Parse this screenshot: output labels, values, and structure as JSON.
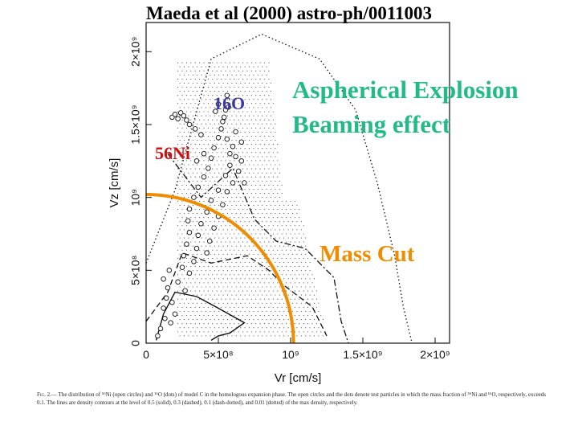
{
  "slide": {
    "title": "Maeda et al (2000) astro-ph/0011003",
    "annotations": {
      "o16_label": "16O",
      "ni56_label": "56Ni",
      "heading_line1": "Aspherical Explosion",
      "heading_line2": "Beaming effect",
      "mass_cut_label": "Mass Cut"
    },
    "caption": {
      "lead": "Fig. 2.",
      "text": "— The distribution of ⁵⁶Ni (open circles) and ¹⁶O (dots) of model C in the homologous expansion phase. The open circles and the dots denote test particles in which the mass fraction of ⁵⁶Ni and ¹⁶O, respectively, exceeds 0.1. The lines are density contours at the level of 0.5 (solid), 0.3 (dashed), 0.1 (dash-dotted), and 0.01 (dotted) of the max density, respectively."
    },
    "colors": {
      "o16": "#3a3aa0",
      "ni56": "#cc1111",
      "heading": "#22bb88",
      "mass_cut": "#f08c00"
    }
  },
  "chart_data": {
    "type": "scatter",
    "xlabel": "Vr [cm/s]",
    "ylabel": "Vz [cm/s]",
    "xlim": [
      0,
      2100000000.0
    ],
    "ylim": [
      0,
      2200000000.0
    ],
    "x_ticks": [
      {
        "value": 0,
        "label": "0"
      },
      {
        "value": 500000000.0,
        "label": "5×10⁸"
      },
      {
        "value": 1000000000.0,
        "label": "10⁹"
      },
      {
        "value": 1500000000.0,
        "label": "1.5×10⁹"
      },
      {
        "value": 2000000000.0,
        "label": "2×10⁹"
      }
    ],
    "y_ticks": [
      {
        "value": 0,
        "label": "0"
      },
      {
        "value": 500000000.0,
        "label": "5×10⁸"
      },
      {
        "value": 1000000000.0,
        "label": "10⁹"
      },
      {
        "value": 1500000000.0,
        "label": "1.5×10⁹"
      },
      {
        "value": 2000000000.0,
        "label": "2×10⁹"
      }
    ],
    "series": [
      {
        "name": "56Ni (open circles)",
        "marker": "open-circle",
        "points": [
          [
            80000000.0,
            50000000.0
          ],
          [
            100000000.0,
            100000000.0
          ],
          [
            130000000.0,
            170000000.0
          ],
          [
            120000000.0,
            240000000.0
          ],
          [
            140000000.0,
            310000000.0
          ],
          [
            150000000.0,
            380000000.0
          ],
          [
            220000000.0,
            420000000.0
          ],
          [
            250000000.0,
            520000000.0
          ],
          [
            260000000.0,
            600000000.0
          ],
          [
            280000000.0,
            680000000.0
          ],
          [
            300000000.0,
            760000000.0
          ],
          [
            290000000.0,
            840000000.0
          ],
          [
            300000000.0,
            920000000.0
          ],
          [
            330000000.0,
            1000000000.0
          ],
          [
            360000000.0,
            1070000000.0
          ],
          [
            400000000.0,
            1140000000.0
          ],
          [
            430000000.0,
            1200000000.0
          ],
          [
            450000000.0,
            1270000000.0
          ],
          [
            470000000.0,
            1340000000.0
          ],
          [
            500000000.0,
            1410000000.0
          ],
          [
            520000000.0,
            1470000000.0
          ],
          [
            560000000.0,
            1400000000.0
          ],
          [
            600000000.0,
            1350000000.0
          ],
          [
            620000000.0,
            1280000000.0
          ],
          [
            580000000.0,
            1220000000.0
          ],
          [
            550000000.0,
            1150000000.0
          ],
          [
            500000000.0,
            1050000000.0
          ],
          [
            450000000.0,
            980000000.0
          ],
          [
            420000000.0,
            900000000.0
          ],
          [
            380000000.0,
            820000000.0
          ],
          [
            360000000.0,
            740000000.0
          ],
          [
            350000000.0,
            650000000.0
          ],
          [
            330000000.0,
            560000000.0
          ],
          [
            300000000.0,
            480000000.0
          ],
          [
            270000000.0,
            360000000.0
          ],
          [
            420000000.0,
            620000000.0
          ],
          [
            440000000.0,
            700000000.0
          ],
          [
            470000000.0,
            790000000.0
          ],
          [
            500000000.0,
            870000000.0
          ],
          [
            530000000.0,
            950000000.0
          ],
          [
            560000000.0,
            1040000000.0
          ],
          [
            600000000.0,
            1100000000.0
          ],
          [
            640000000.0,
            1180000000.0
          ],
          [
            570000000.0,
            1620000000.0
          ],
          [
            560000000.0,
            1700000000.0
          ],
          [
            550000000.0,
            1600000000.0
          ],
          [
            540000000.0,
            1550000000.0
          ],
          [
            180000000.0,
            1550000000.0
          ],
          [
            200000000.0,
            1570000000.0
          ],
          [
            220000000.0,
            1540000000.0
          ],
          [
            240000000.0,
            1580000000.0
          ],
          [
            260000000.0,
            1560000000.0
          ],
          [
            280000000.0,
            1530000000.0
          ],
          [
            300000000.0,
            1500000000.0
          ],
          [
            340000000.0,
            1470000000.0
          ],
          [
            380000000.0,
            1430000000.0
          ],
          [
            480000000.0,
            1590000000.0
          ],
          [
            500000000.0,
            1640000000.0
          ],
          [
            530000000.0,
            1520000000.0
          ],
          [
            580000000.0,
            1300000000.0
          ],
          [
            660000000.0,
            1250000000.0
          ],
          [
            680000000.0,
            1100000000.0
          ],
          [
            180000000.0,
            280000000.0
          ],
          [
            200000000.0,
            200000000.0
          ],
          [
            170000000.0,
            140000000.0
          ],
          [
            120000000.0,
            440000000.0
          ],
          [
            160000000.0,
            500000000.0
          ],
          [
            350000000.0,
            1250000000.0
          ],
          [
            400000000.0,
            1300000000.0
          ],
          [
            620000000.0,
            1450000000.0
          ],
          [
            660000000.0,
            1380000000.0
          ]
        ]
      },
      {
        "name": "16O (dots)",
        "marker": "dot",
        "regions": [
          {
            "vz_range": [
              1000000000.0,
              1950000000.0
            ],
            "vr_max": [
              850000000.0,
              950000000.0
            ]
          },
          {
            "vz_range": [
              50000000.0,
              1000000000.0
            ],
            "vr_max": [
              1050000000.0,
              1250000000.0
            ]
          }
        ]
      }
    ],
    "contours": [
      {
        "level": 0.5,
        "style": "solid",
        "points": [
          [
            70000000.0,
            20000000.0
          ],
          [
            120000000.0,
            200000000.0
          ],
          [
            200000000.0,
            350000000.0
          ],
          [
            350000000.0,
            320000000.0
          ],
          [
            500000000.0,
            240000000.0
          ],
          [
            680000000.0,
            140000000.0
          ],
          [
            580000000.0,
            70000000.0
          ],
          [
            500000000.0,
            50000000.0
          ],
          [
            450000000.0,
            20000000.0
          ]
        ]
      },
      {
        "level": 0.3,
        "style": "dashed",
        "points": [
          [
            0.0,
            150000000.0
          ],
          [
            150000000.0,
            350000000.0
          ],
          [
            250000000.0,
            620000000.0
          ],
          [
            450000000.0,
            550000000.0
          ],
          [
            700000000.0,
            600000000.0
          ],
          [
            850000000.0,
            500000000.0
          ],
          [
            950000000.0,
            400000000.0
          ],
          [
            1150000000.0,
            250000000.0
          ],
          [
            1250000000.0,
            50000000.0
          ]
        ]
      },
      {
        "level": 0.1,
        "style": "dash-dotted",
        "points": [
          [
            150000000.0,
            1300000000.0
          ],
          [
            380000000.0,
            1000000000.0
          ],
          [
            600000000.0,
            1200000000.0
          ],
          [
            750000000.0,
            850000000.0
          ],
          [
            900000000.0,
            700000000.0
          ],
          [
            1100000000.0,
            650000000.0
          ],
          [
            1300000000.0,
            450000000.0
          ],
          [
            1350000000.0,
            150000000.0
          ],
          [
            1400000000.0,
            0.0
          ]
        ]
      },
      {
        "level": 0.01,
        "style": "dotted",
        "points": [
          [
            0.0,
            550000000.0
          ],
          [
            200000000.0,
            1050000000.0
          ],
          [
            450000000.0,
            1950000000.0
          ],
          [
            800000000.0,
            2120000000.0
          ],
          [
            1200000000.0,
            1950000000.0
          ],
          [
            1450000000.0,
            1600000000.0
          ],
          [
            1600000000.0,
            1100000000.0
          ],
          [
            1720000000.0,
            600000000.0
          ],
          [
            1780000000.0,
            250000000.0
          ],
          [
            1840000000.0,
            0.0
          ]
        ]
      }
    ],
    "mass_cut": {
      "shape": "arc",
      "radius": 1020000000.0
    }
  }
}
